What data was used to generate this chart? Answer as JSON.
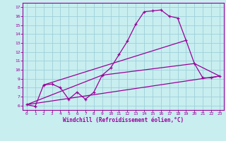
{
  "xlabel": "Windchill (Refroidissement éolien,°C)",
  "bg_color": "#c8eef0",
  "line_color": "#990099",
  "grid_color": "#9ecfda",
  "xlim": [
    -0.5,
    23.5
  ],
  "ylim": [
    5.5,
    17.5
  ],
  "xticks": [
    0,
    1,
    2,
    3,
    4,
    5,
    6,
    7,
    8,
    9,
    10,
    11,
    12,
    13,
    14,
    15,
    16,
    17,
    18,
    19,
    20,
    21,
    22,
    23
  ],
  "yticks": [
    6,
    7,
    8,
    9,
    10,
    11,
    12,
    13,
    14,
    15,
    16,
    17
  ],
  "line1_x": [
    0,
    1,
    2,
    3,
    4,
    5,
    6,
    7,
    8,
    9,
    10,
    11,
    12,
    13,
    14,
    15,
    16,
    17,
    18,
    19,
    20,
    21,
    22,
    23
  ],
  "line1_y": [
    6.1,
    5.9,
    8.3,
    8.4,
    8.0,
    6.7,
    7.5,
    6.7,
    7.5,
    9.4,
    10.2,
    11.7,
    13.2,
    15.1,
    16.5,
    16.6,
    16.7,
    16.0,
    15.8,
    13.3,
    10.7,
    9.1,
    9.1,
    9.3
  ],
  "line3_x": [
    0,
    23
  ],
  "line3_y": [
    6.1,
    9.3
  ],
  "line4_x": [
    2,
    19
  ],
  "line4_y": [
    8.3,
    13.3
  ],
  "line5_x": [
    0,
    9,
    20,
    23
  ],
  "line5_y": [
    6.1,
    9.4,
    10.7,
    9.3
  ]
}
